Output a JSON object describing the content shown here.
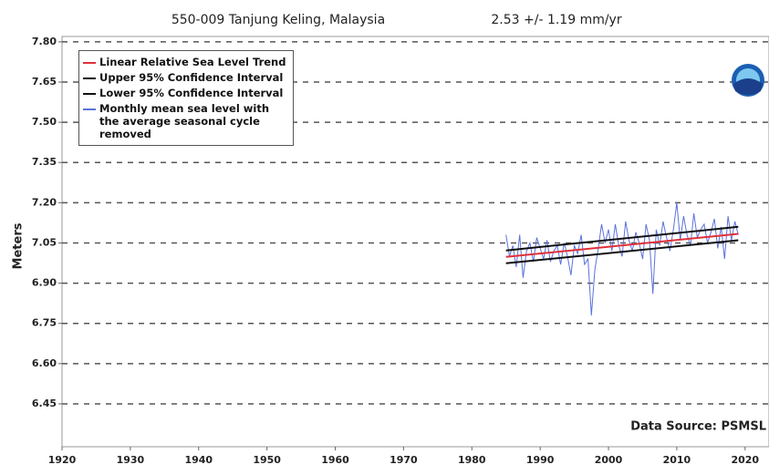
{
  "chart_data": {
    "type": "line",
    "title": "550-009 Tanjung Keling, Malaysia",
    "trend_label": "2.53 +/-  1.19 mm/yr",
    "ylabel": "Meters",
    "source": "Data Source: PSMSL",
    "xlim": [
      1920,
      2023.5
    ],
    "ylim": [
      6.29,
      7.82
    ],
    "xticks": [
      1920,
      1930,
      1940,
      1950,
      1960,
      1970,
      1980,
      1990,
      2000,
      2010,
      2020
    ],
    "yticks": [
      {
        "value": 6.45,
        "label": "6.45"
      },
      {
        "value": 6.6,
        "label": "6.60"
      },
      {
        "value": 6.75,
        "label": "6.75"
      },
      {
        "value": 6.9,
        "label": "6.90"
      },
      {
        "value": 7.05,
        "label": "7.05"
      },
      {
        "value": 7.2,
        "label": "7.20"
      },
      {
        "value": 7.35,
        "label": "7.35"
      },
      {
        "value": 7.5,
        "label": "7.50"
      },
      {
        "value": 7.65,
        "label": "7.65"
      },
      {
        "value": 7.8,
        "label": "7.80"
      }
    ],
    "grid": true,
    "series": [
      {
        "name": "Linear Relative Sea Level Trend",
        "color": "#e0303a",
        "x": [
          1985,
          2019
        ],
        "values": [
          6.998,
          7.084
        ]
      },
      {
        "name": "Upper 95% Confidence Interval",
        "color": "#111111",
        "x": [
          1985,
          2019
        ],
        "values": [
          7.022,
          7.11
        ]
      },
      {
        "name": "Lower 95% Confidence Interval",
        "color": "#111111",
        "x": [
          1985,
          2019
        ],
        "values": [
          6.974,
          7.06
        ]
      },
      {
        "name": "Monthly mean sea level with the average seasonal cycle removed",
        "color": "#5b72dc",
        "x": [
          1985,
          1985.5,
          1986,
          1986.5,
          1987,
          1987.5,
          1988,
          1988.5,
          1989,
          1989.5,
          1990,
          1990.5,
          1991,
          1991.5,
          1992,
          1992.5,
          1993,
          1993.5,
          1994,
          1994.5,
          1995,
          1995.5,
          1996,
          1996.5,
          1997,
          1997.5,
          1998,
          1998.5,
          1999,
          1999.5,
          2000,
          2000.5,
          2001,
          2001.5,
          2002,
          2002.5,
          2003,
          2003.5,
          2004,
          2004.5,
          2005,
          2005.5,
          2006,
          2006.5,
          2007,
          2007.5,
          2008,
          2008.5,
          2009,
          2009.5,
          2010,
          2010.5,
          2011,
          2011.5,
          2012,
          2012.5,
          2013,
          2013.5,
          2014,
          2014.5,
          2015,
          2015.5,
          2016,
          2016.5,
          2017,
          2017.5,
          2018,
          2018.5,
          2019
        ],
        "values": [
          7.08,
          7.0,
          7.04,
          6.96,
          7.08,
          6.92,
          7.02,
          7.05,
          6.98,
          7.07,
          7.03,
          6.99,
          7.06,
          6.98,
          7.02,
          7.04,
          6.97,
          7.05,
          7.0,
          6.93,
          7.04,
          7.01,
          7.08,
          6.97,
          6.99,
          6.78,
          6.95,
          7.03,
          7.12,
          7.05,
          7.1,
          7.02,
          7.12,
          7.04,
          7.0,
          7.13,
          7.06,
          7.02,
          7.09,
          7.05,
          6.99,
          7.12,
          7.06,
          6.86,
          7.1,
          7.04,
          7.13,
          7.07,
          7.02,
          7.1,
          7.2,
          7.06,
          7.15,
          7.08,
          7.04,
          7.16,
          7.07,
          7.1,
          7.12,
          7.05,
          7.09,
          7.14,
          7.03,
          7.11,
          6.99,
          7.15,
          7.06,
          7.13,
          7.08
        ]
      }
    ]
  }
}
